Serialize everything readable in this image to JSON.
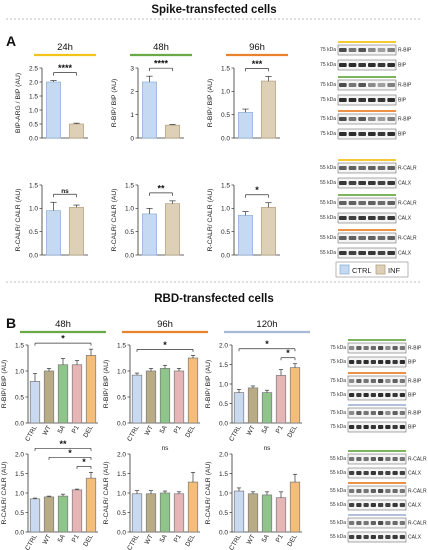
{
  "colors": {
    "ctrl_fill": "#c5d9f1",
    "ctrl_edge": "#8fb1d9",
    "inf_fill": "#ddd0b6",
    "inf_edge": "#b3a280",
    "t24": "#f2c318",
    "t48": "#6aaa46",
    "t96": "#e8822c",
    "t120": "#a6b8d6",
    "pv_ctrl": "#c9daf0",
    "pv_wt": "#b9ab86",
    "pv_5a": "#8fc48a",
    "pv_p1": "#e6b5b5",
    "pv_del": "#f4bd7a",
    "blot_band": "#222222"
  },
  "panel_a": {
    "section_title": "Spike-transfected cells",
    "letter": "A",
    "legend": {
      "ctrl": "CTRL",
      "inf": "INF"
    }
  },
  "panel_b": {
    "section_title": "RBD-transfected cells",
    "letter": "B"
  },
  "blots": {
    "mw75": "75 kDa",
    "mw55": "55 kDa",
    "rbip": "R-BIP",
    "bip": "BIP",
    "rcalr": "R-CALR",
    "calx": "CALX"
  },
  "chart_data": [
    {
      "id": "a-rbip-24",
      "type": "bar",
      "panel": "A",
      "timepoint": "24h",
      "title_color": "t24",
      "categories": [
        "CTRL",
        "INF"
      ],
      "values": [
        2.0,
        0.5
      ],
      "errors": [
        0.05,
        0.03
      ],
      "ylabel": "BIP-ARG / BIP (AU)",
      "ylim": [
        0,
        2.5
      ],
      "yticks": [
        0.0,
        0.5,
        1.0,
        1.5,
        2.0,
        2.5
      ],
      "significance": [
        {
          "from": 0,
          "to": 1,
          "label": "****"
        }
      ]
    },
    {
      "id": "a-rbip-48",
      "type": "bar",
      "panel": "A",
      "timepoint": "48h",
      "title_color": "t48",
      "categories": [
        "CTRL",
        "INF"
      ],
      "values": [
        2.4,
        0.55
      ],
      "errors": [
        0.25,
        0.03
      ],
      "ylabel": "R-BIP/ BIP (AU)",
      "ylim": [
        0,
        3
      ],
      "yticks": [
        0,
        1,
        2,
        3
      ],
      "significance": [
        {
          "from": 0,
          "to": 1,
          "label": "****"
        }
      ]
    },
    {
      "id": "a-rbip-96",
      "type": "bar",
      "panel": "A",
      "timepoint": "96h",
      "title_color": "t96",
      "categories": [
        "CTRL",
        "INF"
      ],
      "values": [
        0.55,
        1.22
      ],
      "errors": [
        0.07,
        0.1
      ],
      "ylabel": "R-BIP/ BIP (AU)",
      "ylim": [
        0,
        1.5
      ],
      "yticks": [
        0.0,
        0.5,
        1.0,
        1.5
      ],
      "significance": [
        {
          "from": 0,
          "to": 1,
          "label": "***"
        }
      ]
    },
    {
      "id": "a-rcalr-24",
      "type": "bar",
      "panel": "A",
      "categories": [
        "CTRL",
        "INF"
      ],
      "values": [
        0.95,
        1.02
      ],
      "errors": [
        0.18,
        0.05
      ],
      "ylabel": "R-CALR/ CALR (AU)",
      "ylim": [
        0,
        1.5
      ],
      "yticks": [
        0.0,
        0.5,
        1.0,
        1.5
      ],
      "significance": [
        {
          "from": 0,
          "to": 1,
          "label": "ns"
        }
      ]
    },
    {
      "id": "a-rcalr-48",
      "type": "bar",
      "panel": "A",
      "categories": [
        "CTRL",
        "INF"
      ],
      "values": [
        0.88,
        1.1
      ],
      "errors": [
        0.12,
        0.06
      ],
      "ylabel": "R-CALR/ CALR (AU)",
      "ylim": [
        0,
        1.5
      ],
      "yticks": [
        0.0,
        0.5,
        1.0,
        1.5
      ],
      "significance": [
        {
          "from": 0,
          "to": 1,
          "label": "**"
        }
      ]
    },
    {
      "id": "a-rcalr-96",
      "type": "bar",
      "panel": "A",
      "categories": [
        "CTRL",
        "INF"
      ],
      "values": [
        0.85,
        1.02
      ],
      "errors": [
        0.08,
        0.1
      ],
      "ylabel": "R-CALR/ CALR (AU)",
      "ylim": [
        0,
        1.5
      ],
      "yticks": [
        0.0,
        0.5,
        1.0,
        1.5
      ],
      "significance": [
        {
          "from": 0,
          "to": 1,
          "label": "*"
        }
      ]
    },
    {
      "id": "b-rbip-48",
      "type": "bar",
      "panel": "B",
      "timepoint": "48h",
      "title_color": "t48",
      "categories": [
        "CTRL",
        "WT",
        "5A",
        "P1",
        "DEL"
      ],
      "values": [
        0.8,
        1.0,
        1.12,
        1.12,
        1.3
      ],
      "errors": [
        0.15,
        0.05,
        0.12,
        0.08,
        0.12
      ],
      "ylabel": "R-BIP/ BIP (AU)",
      "ylim": [
        0,
        1.5
      ],
      "yticks": [
        0.0,
        0.5,
        1.0,
        1.5
      ],
      "significance": [
        {
          "from": 0,
          "to": 4,
          "label": "*"
        }
      ]
    },
    {
      "id": "b-rbip-96",
      "type": "bar",
      "panel": "B",
      "timepoint": "96h",
      "title_color": "t96",
      "categories": [
        "CTRL",
        "WT",
        "5A",
        "P1",
        "DEL"
      ],
      "values": [
        0.92,
        1.0,
        1.05,
        1.0,
        1.25
      ],
      "errors": [
        0.04,
        0.05,
        0.06,
        0.05,
        0.05
      ],
      "ylabel": "R-BIP/ BIP (AU)",
      "ylim": [
        0,
        1.5
      ],
      "yticks": [
        0.0,
        0.5,
        1.0,
        1.5
      ],
      "significance": [
        {
          "from": 0,
          "to": 4,
          "label": "*"
        }
      ]
    },
    {
      "id": "b-rbip-120",
      "type": "bar",
      "panel": "B",
      "timepoint": "120h",
      "title_color": "t120",
      "categories": [
        "CTRL",
        "WT",
        "5A",
        "P1",
        "DEL"
      ],
      "values": [
        0.78,
        0.9,
        0.78,
        1.22,
        1.42
      ],
      "errors": [
        0.08,
        0.05,
        0.06,
        0.15,
        0.1
      ],
      "ylabel": "R-BIP/ BIP (AU)",
      "ylim": [
        0,
        2.0
      ],
      "yticks": [
        0.0,
        0.5,
        1.0,
        1.5,
        2.0
      ],
      "significance": [
        {
          "from": 0,
          "to": 4,
          "label": "*"
        },
        {
          "from": 3,
          "to": 4,
          "label": "*"
        }
      ]
    },
    {
      "id": "b-rcalr-48",
      "type": "bar",
      "panel": "B",
      "categories": [
        "CTRL",
        "WT",
        "5A",
        "P1",
        "DEL"
      ],
      "values": [
        0.85,
        0.9,
        0.92,
        1.08,
        1.38
      ],
      "errors": [
        0.02,
        0.02,
        0.05,
        0.02,
        0.15
      ],
      "ylabel": "R-CALR/ CALR (AU)",
      "ylim": [
        0,
        2.0
      ],
      "yticks": [
        0.0,
        0.5,
        1.0,
        1.5,
        2.0
      ],
      "significance": [
        {
          "from": 0,
          "to": 4,
          "label": "**"
        },
        {
          "from": 1,
          "to": 4,
          "label": "*"
        },
        {
          "from": 3,
          "to": 4,
          "label": "*"
        }
      ]
    },
    {
      "id": "b-rcalr-96",
      "type": "bar",
      "panel": "B",
      "categories": [
        "CTRL",
        "WT",
        "5A",
        "P1",
        "DEL"
      ],
      "values": [
        0.98,
        0.98,
        1.0,
        0.98,
        1.28
      ],
      "errors": [
        0.08,
        0.08,
        0.05,
        0.05,
        0.25
      ],
      "ylabel": "R-CALR/ CALR (AU)",
      "ylim": [
        0,
        2.0
      ],
      "yticks": [
        0.0,
        0.5,
        1.0,
        1.5,
        2.0
      ],
      "annotation": "ns"
    },
    {
      "id": "b-rcalr-120",
      "type": "bar",
      "panel": "B",
      "categories": [
        "CTRL",
        "WT",
        "5A",
        "P1",
        "DEL"
      ],
      "values": [
        1.05,
        0.98,
        0.95,
        0.88,
        1.28
      ],
      "errors": [
        0.08,
        0.05,
        0.08,
        0.15,
        0.2
      ],
      "ylabel": "R-CALR/ CALR (AU)",
      "ylim": [
        0,
        2.0
      ],
      "yticks": [
        0.0,
        0.5,
        1.0,
        1.5,
        2.0
      ],
      "annotation": "ns"
    }
  ]
}
